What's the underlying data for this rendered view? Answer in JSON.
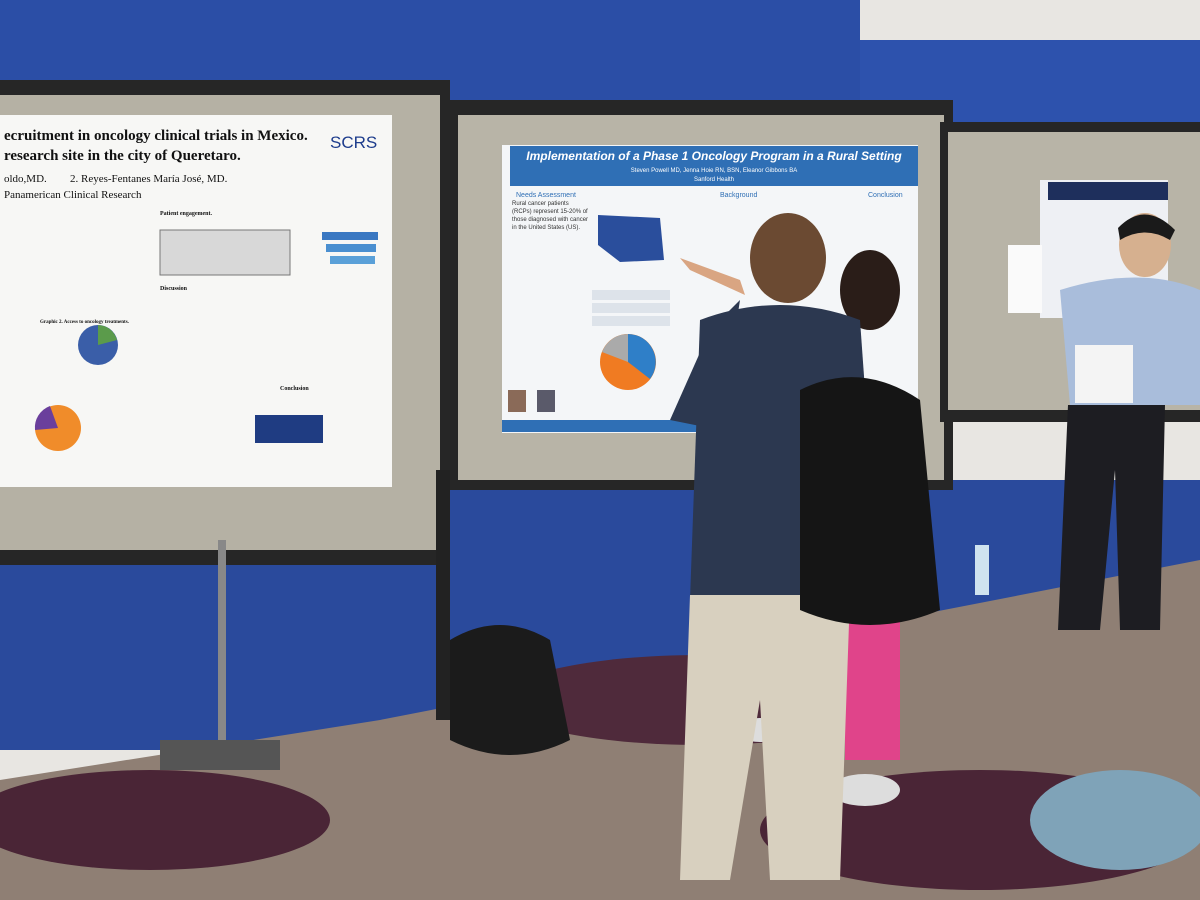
{
  "left_poster": {
    "title_line1": "ecruitment in oncology clinical trials in Mexico.",
    "title_line2": "research site in the city of Queretaro.",
    "logo": "SCRS",
    "author_1": "oldo,MD.",
    "author_2": "2. Reyes-Fentanes María José, MD.",
    "affiliation": "Panamerican Clinical Research",
    "sections": [
      "Patient engagement.",
      "Discussion",
      "Conclusion"
    ],
    "graphic_label": "Graphic 2. Access to oncology treatments."
  },
  "center_poster": {
    "title": "Implementation of a Phase 1 Oncology Program in a Rural Setting",
    "authors": "Steven Powell MD, Jenna Hoie RN, BSN, Eleanor Gibbons BA",
    "affiliation": "Sanford Health",
    "sections": [
      "Needs Assessment",
      "Background",
      "Conclusion"
    ],
    "body": "Rural cancer patients (RCPs) represent 15-20% of those diagnosed with cancer in the United States (US)."
  }
}
